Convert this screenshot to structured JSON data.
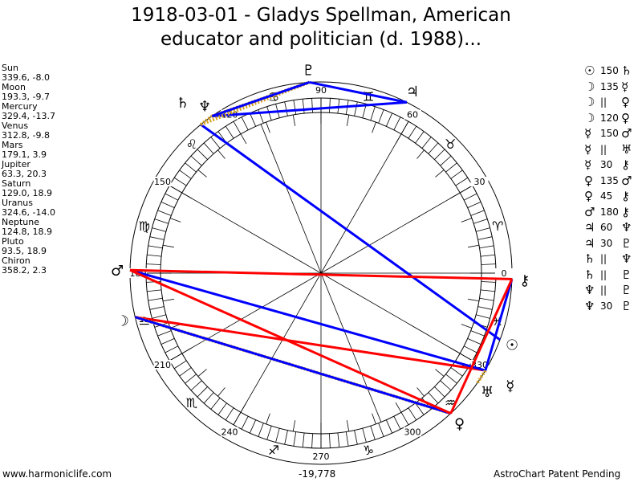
{
  "title_line1": "1918-03-01 - Gladys Spellman, American",
  "title_line2": "educator and politician (d. 1988)...",
  "planets": [
    {
      "name": "Sun",
      "glyph": "☉",
      "lon": 339.6,
      "lat": -8.0,
      "pos": "339.6, -8.0"
    },
    {
      "name": "Moon",
      "glyph": "☽",
      "lon": 193.3,
      "lat": -9.7,
      "pos": "193.3, -9.7"
    },
    {
      "name": "Mercury",
      "glyph": "☿",
      "lon": 329.4,
      "lat": -13.7,
      "pos": "329.4, -13.7"
    },
    {
      "name": "Venus",
      "glyph": "♀",
      "lon": 312.8,
      "lat": -9.8,
      "pos": "312.8, -9.8"
    },
    {
      "name": "Mars",
      "glyph": "♂",
      "lon": 179.1,
      "lat": 3.9,
      "pos": "179.1, 3.9"
    },
    {
      "name": "Jupiter",
      "glyph": "♃",
      "lon": 63.3,
      "lat": 20.3,
      "pos": "63.3, 20.3"
    },
    {
      "name": "Saturn",
      "glyph": "♄",
      "lon": 129.0,
      "lat": 18.9,
      "pos": "129.0, 18.9"
    },
    {
      "name": "Uranus",
      "glyph": "♅",
      "lon": 324.6,
      "lat": -14.0,
      "pos": "324.6, -14.0"
    },
    {
      "name": "Neptune",
      "glyph": "♆",
      "lon": 124.8,
      "lat": 18.9,
      "pos": "124.8, 18.9"
    },
    {
      "name": "Pluto",
      "glyph": "♇",
      "lon": 93.5,
      "lat": 18.9,
      "pos": "93.5, 18.9"
    },
    {
      "name": "Chiron",
      "glyph": "⚷",
      "lon": 358.2,
      "lat": 2.3,
      "pos": "358.2, 2.3"
    }
  ],
  "aspects": [
    {
      "g1": "☉",
      "label": "150",
      "g2": "♄",
      "p1": "Sun",
      "p2": "Saturn",
      "color": "#0000ff"
    },
    {
      "g1": "☽",
      "label": "135",
      "g2": "☿",
      "p1": "Moon",
      "p2": "Mercury",
      "color": "#ff0000"
    },
    {
      "g1": "☽",
      "label": "||",
      "g2": "♀",
      "p1": "Moon",
      "p2": "Venus",
      "color": "#d4a020",
      "parallel": true
    },
    {
      "g1": "☽",
      "label": "120",
      "g2": "♀",
      "p1": "Moon",
      "p2": "Venus",
      "color": "#0000ff"
    },
    {
      "g1": "☿",
      "label": "150",
      "g2": "♂",
      "p1": "Mercury",
      "p2": "Mars",
      "color": "#0000ff"
    },
    {
      "g1": "☿",
      "label": "||",
      "g2": "♅",
      "p1": "Mercury",
      "p2": "Uranus",
      "color": "#d4a020",
      "parallel": true
    },
    {
      "g1": "☿",
      "label": "30",
      "g2": "⚷",
      "p1": "Mercury",
      "p2": "Chiron",
      "color": "#0000ff"
    },
    {
      "g1": "♀",
      "label": "135",
      "g2": "♂",
      "p1": "Venus",
      "p2": "Mars",
      "color": "#ff0000"
    },
    {
      "g1": "♀",
      "label": "45",
      "g2": "⚷",
      "p1": "Venus",
      "p2": "Chiron",
      "color": "#ff0000"
    },
    {
      "g1": "♂",
      "label": "180",
      "g2": "⚷",
      "p1": "Mars",
      "p2": "Chiron",
      "color": "#ff0000"
    },
    {
      "g1": "♃",
      "label": "60",
      "g2": "♆",
      "p1": "Jupiter",
      "p2": "Neptune",
      "color": "#0000ff"
    },
    {
      "g1": "♃",
      "label": "30",
      "g2": "♇",
      "p1": "Jupiter",
      "p2": "Pluto",
      "color": "#0000ff"
    },
    {
      "g1": "♄",
      "label": "||",
      "g2": "♆",
      "p1": "Saturn",
      "p2": "Neptune",
      "color": "#d4a020",
      "parallel": true
    },
    {
      "g1": "♄",
      "label": "||",
      "g2": "♇",
      "p1": "Saturn",
      "p2": "Pluto",
      "color": "#d4a020",
      "parallel": true
    },
    {
      "g1": "♆",
      "label": "||",
      "g2": "♇",
      "p1": "Neptune",
      "p2": "Pluto",
      "color": "#d4a020",
      "parallel": true
    },
    {
      "g1": "♆",
      "label": "30",
      "g2": "♇",
      "p1": "Neptune",
      "p2": "Pluto",
      "color": "#0000ff"
    }
  ],
  "zodiac": [
    "♈",
    "♉",
    "♊",
    "♋",
    "♌",
    "♍",
    "♎",
    "♏",
    "♐",
    "♑",
    "♒",
    "♓"
  ],
  "degree_labels": [
    "0",
    "30",
    "60",
    "90",
    "120",
    "150",
    "180",
    "210",
    "240",
    "270",
    "300",
    "330"
  ],
  "footer": {
    "site": "www.harmoniclife.com",
    "value": "-19,778",
    "notice": "AstroChart Patent Pending"
  }
}
